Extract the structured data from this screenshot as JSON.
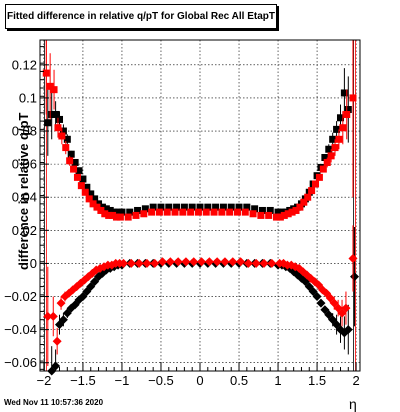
{
  "timestamp": "Wed Nov 11 10:57:36 2020",
  "chart_data": {
    "type": "scatter",
    "title": "Fitted difference in relative q/pT for Global Rec All EtapT",
    "xlabel": "η",
    "ylabel": "difference in relative q/pT",
    "xlim": [
      -2.05,
      2.05
    ],
    "ylim": [
      -0.065,
      0.135
    ],
    "x_ticks": [
      -2,
      -1.5,
      -1,
      -0.5,
      0,
      0.5,
      1,
      1.5,
      2
    ],
    "x_tick_labels": [
      "−2",
      "−1.5",
      "−1",
      "−0.5",
      "0",
      "0.5",
      "1",
      "1.5",
      "2"
    ],
    "y_ticks": [
      -0.06,
      -0.04,
      -0.02,
      0,
      0.02,
      0.04,
      0.06,
      0.08,
      0.1,
      0.12
    ],
    "y_tick_labels": [
      "−0.06",
      "−0.04",
      "−0.02",
      "0",
      "0.02",
      "0.04",
      "0.06",
      "0.08",
      "0.1",
      "0.12"
    ],
    "grid": true,
    "legend": "none",
    "reference_lines_x": [
      -1.98,
      1.98
    ],
    "series": [
      {
        "color": "#000000",
        "marker": "square",
        "x": [
          -1.95,
          -1.9,
          -1.85,
          -1.8,
          -1.75,
          -1.7,
          -1.65,
          -1.6,
          -1.55,
          -1.5,
          -1.45,
          -1.4,
          -1.35,
          -1.3,
          -1.25,
          -1.2,
          -1.15,
          -1.1,
          -1.05,
          -1.0,
          -0.9,
          -0.8,
          -0.7,
          -0.6,
          -0.5,
          -0.4,
          -0.3,
          -0.2,
          -0.1,
          0.0,
          0.1,
          0.2,
          0.3,
          0.4,
          0.5,
          0.6,
          0.7,
          0.8,
          0.9,
          1.0,
          1.05,
          1.1,
          1.15,
          1.2,
          1.25,
          1.3,
          1.35,
          1.4,
          1.45,
          1.5,
          1.55,
          1.6,
          1.65,
          1.7,
          1.75,
          1.8,
          1.85,
          1.9
        ],
        "y": [
          0.085,
          0.09,
          0.09,
          0.087,
          0.08,
          0.075,
          0.066,
          0.061,
          0.056,
          0.051,
          0.046,
          0.042,
          0.039,
          0.036,
          0.034,
          0.033,
          0.032,
          0.031,
          0.031,
          0.031,
          0.031,
          0.032,
          0.033,
          0.034,
          0.034,
          0.034,
          0.034,
          0.034,
          0.034,
          0.034,
          0.034,
          0.034,
          0.034,
          0.034,
          0.034,
          0.034,
          0.033,
          0.032,
          0.032,
          0.031,
          0.031,
          0.031,
          0.032,
          0.033,
          0.034,
          0.036,
          0.039,
          0.043,
          0.048,
          0.053,
          0.058,
          0.064,
          0.069,
          0.075,
          0.081,
          0.088,
          0.103,
          0.093
        ],
        "yerr": [
          0.02,
          0.015,
          0.008,
          0.005,
          0.004,
          0.003,
          0.002,
          0.002,
          0.002,
          0.001,
          0.001,
          0.001,
          0.001,
          0.001,
          0.001,
          0.001,
          0.001,
          0.001,
          0.001,
          0.001,
          0.001,
          0.001,
          0.001,
          0.001,
          0.001,
          0.001,
          0.001,
          0.001,
          0.001,
          0.001,
          0.001,
          0.001,
          0.001,
          0.001,
          0.001,
          0.001,
          0.001,
          0.001,
          0.001,
          0.001,
          0.001,
          0.001,
          0.001,
          0.001,
          0.001,
          0.001,
          0.001,
          0.001,
          0.001,
          0.002,
          0.002,
          0.002,
          0.003,
          0.004,
          0.005,
          0.008,
          0.015,
          0.02
        ]
      },
      {
        "color": "#ff0000",
        "marker": "square",
        "x": [
          -1.97,
          -1.92,
          -1.87,
          -1.82,
          -1.77,
          -1.72,
          -1.67,
          -1.62,
          -1.57,
          -1.52,
          -1.47,
          -1.42,
          -1.37,
          -1.32,
          -1.27,
          -1.22,
          -1.17,
          -1.12,
          -1.07,
          -1.02,
          -0.92,
          -0.82,
          -0.72,
          -0.62,
          -0.52,
          -0.42,
          -0.32,
          -0.22,
          -0.12,
          -0.02,
          0.08,
          0.18,
          0.28,
          0.38,
          0.48,
          0.58,
          0.68,
          0.78,
          0.88,
          0.98,
          1.03,
          1.08,
          1.13,
          1.18,
          1.23,
          1.28,
          1.33,
          1.38,
          1.43,
          1.48,
          1.53,
          1.58,
          1.63,
          1.68,
          1.73,
          1.78,
          1.83,
          1.88,
          1.96
        ],
        "y": [
          0.115,
          0.107,
          0.105,
          0.082,
          0.077,
          0.07,
          0.062,
          0.057,
          0.052,
          0.047,
          0.043,
          0.039,
          0.036,
          0.034,
          0.032,
          0.03,
          0.029,
          0.029,
          0.028,
          0.028,
          0.028,
          0.029,
          0.03,
          0.031,
          0.031,
          0.031,
          0.031,
          0.031,
          0.031,
          0.031,
          0.031,
          0.031,
          0.031,
          0.031,
          0.031,
          0.031,
          0.03,
          0.029,
          0.029,
          0.028,
          0.028,
          0.029,
          0.03,
          0.031,
          0.032,
          0.034,
          0.037,
          0.04,
          0.044,
          0.048,
          0.052,
          0.057,
          0.061,
          0.065,
          0.07,
          0.075,
          0.082,
          0.09,
          0.1
        ],
        "yerr": [
          0.025,
          0.02,
          0.012,
          0.006,
          0.005,
          0.004,
          0.003,
          0.002,
          0.002,
          0.001,
          0.001,
          0.001,
          0.001,
          0.001,
          0.001,
          0.001,
          0.001,
          0.001,
          0.001,
          0.001,
          0.001,
          0.001,
          0.001,
          0.001,
          0.001,
          0.001,
          0.001,
          0.001,
          0.001,
          0.001,
          0.001,
          0.001,
          0.001,
          0.001,
          0.001,
          0.001,
          0.001,
          0.001,
          0.001,
          0.001,
          0.001,
          0.001,
          0.001,
          0.001,
          0.001,
          0.001,
          0.001,
          0.001,
          0.001,
          0.001,
          0.002,
          0.002,
          0.003,
          0.004,
          0.005,
          0.006,
          0.01,
          0.015,
          0.06
        ]
      },
      {
        "color": "#000000",
        "marker": "diamond",
        "x": [
          -1.9,
          -1.85,
          -1.8,
          -1.75,
          -1.7,
          -1.65,
          -1.6,
          -1.55,
          -1.5,
          -1.45,
          -1.4,
          -1.35,
          -1.3,
          -1.25,
          -1.2,
          -1.15,
          -1.1,
          -1.05,
          -1.0,
          -0.9,
          -0.8,
          -0.7,
          -0.6,
          -0.5,
          -0.4,
          -0.3,
          -0.2,
          -0.1,
          0.0,
          0.1,
          0.2,
          0.3,
          0.4,
          0.5,
          0.6,
          0.7,
          0.8,
          0.9,
          1.0,
          1.05,
          1.1,
          1.15,
          1.2,
          1.25,
          1.3,
          1.35,
          1.4,
          1.45,
          1.5,
          1.55,
          1.6,
          1.65,
          1.7,
          1.75,
          1.8,
          1.85,
          1.9,
          1.98
        ],
        "y": [
          -0.065,
          -0.062,
          -0.037,
          -0.034,
          -0.03,
          -0.027,
          -0.025,
          -0.022,
          -0.02,
          -0.017,
          -0.014,
          -0.011,
          -0.008,
          -0.006,
          -0.004,
          -0.003,
          -0.002,
          -0.001,
          -0.001,
          0.0,
          0.0,
          0.0,
          0.0,
          0.0,
          0.0,
          0.0,
          0.0,
          0.0,
          0.0,
          0.0,
          0.0,
          0.0,
          0.0,
          0.0,
          0.0,
          0.0,
          0.0,
          0.0,
          -0.001,
          -0.001,
          -0.002,
          -0.003,
          -0.005,
          -0.007,
          -0.009,
          -0.011,
          -0.014,
          -0.017,
          -0.02,
          -0.024,
          -0.028,
          -0.031,
          -0.034,
          -0.037,
          -0.04,
          -0.042,
          -0.04,
          -0.008
        ],
        "yerr": [
          0.015,
          0.01,
          0.006,
          0.004,
          0.003,
          0.002,
          0.002,
          0.002,
          0.001,
          0.001,
          0.001,
          0.001,
          0.001,
          0.001,
          0.001,
          0.001,
          0.001,
          0.001,
          0.001,
          0.001,
          0.001,
          0.001,
          0.001,
          0.001,
          0.001,
          0.001,
          0.001,
          0.001,
          0.001,
          0.001,
          0.001,
          0.001,
          0.001,
          0.001,
          0.001,
          0.001,
          0.001,
          0.001,
          0.001,
          0.001,
          0.001,
          0.001,
          0.001,
          0.001,
          0.001,
          0.001,
          0.001,
          0.001,
          0.002,
          0.002,
          0.002,
          0.003,
          0.004,
          0.006,
          0.008,
          0.01,
          0.015,
          0.03
        ]
      },
      {
        "color": "#ff0000",
        "marker": "diamond",
        "x": [
          -1.95,
          -1.88,
          -1.83,
          -1.78,
          -1.73,
          -1.68,
          -1.63,
          -1.58,
          -1.53,
          -1.48,
          -1.43,
          -1.38,
          -1.33,
          -1.28,
          -1.23,
          -1.18,
          -1.13,
          -1.08,
          -1.03,
          -0.98,
          -0.88,
          -0.78,
          -0.68,
          -0.58,
          -0.48,
          -0.38,
          -0.28,
          -0.18,
          -0.08,
          0.02,
          0.12,
          0.22,
          0.32,
          0.42,
          0.52,
          0.62,
          0.72,
          0.82,
          0.92,
          1.02,
          1.07,
          1.12,
          1.17,
          1.22,
          1.27,
          1.32,
          1.37,
          1.42,
          1.47,
          1.52,
          1.57,
          1.62,
          1.67,
          1.72,
          1.77,
          1.82,
          1.87,
          1.96
        ],
        "y": [
          -0.032,
          -0.032,
          -0.047,
          -0.024,
          -0.02,
          -0.018,
          -0.016,
          -0.014,
          -0.012,
          -0.01,
          -0.008,
          -0.006,
          -0.004,
          -0.003,
          -0.002,
          -0.001,
          -0.001,
          0.0,
          0.0,
          0.0,
          0.0,
          0.0,
          0.0,
          0.0,
          0.001,
          0.001,
          0.001,
          0.001,
          0.001,
          0.001,
          0.001,
          0.001,
          0.001,
          0.001,
          0.001,
          0.0,
          0.0,
          0.0,
          0.0,
          0.0,
          0.0,
          -0.001,
          -0.001,
          -0.002,
          -0.003,
          -0.005,
          -0.007,
          -0.009,
          -0.011,
          -0.013,
          -0.016,
          -0.018,
          -0.021,
          -0.024,
          -0.027,
          -0.03,
          -0.027,
          0.003
        ],
        "yerr": [
          0.03,
          0.012,
          0.008,
          0.004,
          0.003,
          0.002,
          0.002,
          0.001,
          0.001,
          0.001,
          0.001,
          0.001,
          0.001,
          0.001,
          0.001,
          0.001,
          0.001,
          0.001,
          0.001,
          0.001,
          0.001,
          0.001,
          0.001,
          0.001,
          0.001,
          0.001,
          0.001,
          0.001,
          0.001,
          0.001,
          0.001,
          0.001,
          0.001,
          0.001,
          0.001,
          0.001,
          0.001,
          0.001,
          0.001,
          0.001,
          0.001,
          0.001,
          0.001,
          0.001,
          0.001,
          0.001,
          0.001,
          0.001,
          0.001,
          0.001,
          0.002,
          0.002,
          0.003,
          0.004,
          0.005,
          0.008,
          0.01,
          0.02
        ]
      }
    ]
  }
}
